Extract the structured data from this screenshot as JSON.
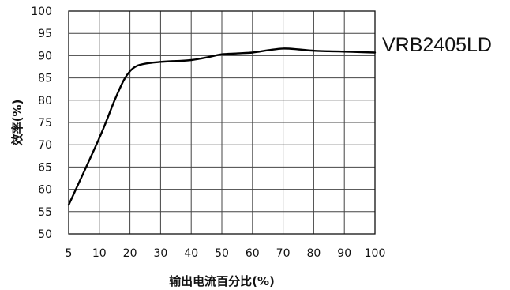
{
  "chart_data": {
    "type": "line",
    "title": "",
    "xlabel": "输出电流百分比(%)",
    "ylabel": "效率(%)",
    "model_label": "VRB2405LD",
    "xlim": [
      5,
      100
    ],
    "ylim": [
      50,
      100
    ],
    "x_ticks": [
      "5",
      "10",
      "20",
      "30",
      "40",
      "50",
      "60",
      "70",
      "80",
      "90",
      "100"
    ],
    "y_ticks": [
      "50",
      "55",
      "60",
      "65",
      "70",
      "75",
      "80",
      "85",
      "90",
      "95",
      "100"
    ],
    "grid": true,
    "series": [
      {
        "x": [
          5,
          10,
          15,
          18,
          20,
          22,
          25,
          30,
          35,
          40,
          45,
          50,
          55,
          60,
          65,
          70,
          75,
          80,
          85,
          90,
          95,
          100
        ],
        "y": [
          56.5,
          71.5,
          80,
          84.5,
          86.5,
          87.6,
          88.2,
          88.6,
          88.8,
          89.0,
          89.6,
          90.3,
          90.5,
          90.7,
          91.2,
          91.6,
          91.4,
          91.1,
          91.0,
          90.9,
          90.8,
          90.7
        ]
      }
    ],
    "line_color": "#000000"
  }
}
